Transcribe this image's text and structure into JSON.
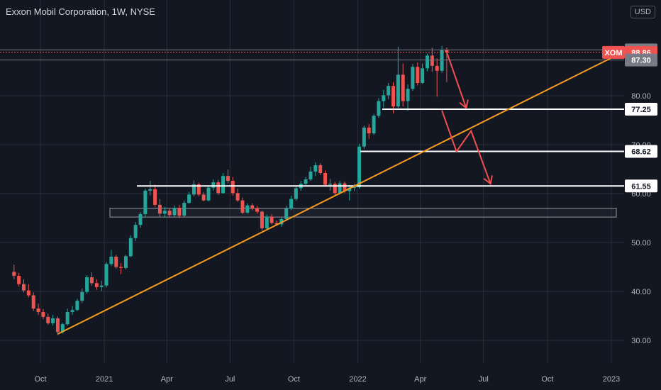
{
  "header": {
    "title": "Exxon Mobil Corporation, 1W, NYSE",
    "currency": "USD"
  },
  "colors": {
    "background": "#131722",
    "up": "#26a69a",
    "down": "#ef5350",
    "trendline": "#f59b1f",
    "level": "#ffffff",
    "arrow": "#f0504f",
    "grid": "#2a2e39",
    "axis_text": "#b2b5be"
  },
  "chart_data": {
    "type": "candlestick",
    "title": "Exxon Mobil Corporation, 1W, NYSE",
    "x_tick_labels": [
      "Oct",
      "2021",
      "Apr",
      "Jul",
      "Oct",
      "2022",
      "Apr",
      "Jul",
      "Oct",
      "2023"
    ],
    "y_tick_labels": [
      "30.00",
      "40.00",
      "50.00",
      "60.00",
      "70.00",
      "80.00"
    ],
    "ylim": [
      27,
      93
    ],
    "grid": true,
    "price_tags": [
      {
        "label": "89.36",
        "value": 89.36
      },
      {
        "symbol": "XOM",
        "label": "88.86",
        "value": 88.86
      },
      {
        "label": "87.30",
        "value": 87.3
      }
    ],
    "levels": [
      {
        "label": "77.25",
        "value": 77.25
      },
      {
        "label": "68.62",
        "value": 68.62
      },
      {
        "label": "61.55",
        "value": 61.55
      }
    ],
    "zone": {
      "low": 55.2,
      "high": 57.0
    },
    "trendline": [
      {
        "x": "2020-10-26",
        "y": 31.3
      },
      {
        "x": "2023-01-09",
        "y": 88.3
      }
    ],
    "ohlc": [
      [
        "2020-08-24",
        44.0,
        45.5,
        42.5,
        43.2
      ],
      [
        "2020-08-31",
        43.2,
        43.8,
        41.0,
        41.5
      ],
      [
        "2020-09-07",
        41.5,
        42.5,
        39.8,
        40.2
      ],
      [
        "2020-09-14",
        40.2,
        41.5,
        38.8,
        39.2
      ],
      [
        "2020-09-21",
        39.2,
        39.8,
        36.0,
        36.5
      ],
      [
        "2020-09-28",
        36.5,
        37.5,
        35.2,
        35.8
      ],
      [
        "2020-10-05",
        35.8,
        36.4,
        34.3,
        34.8
      ],
      [
        "2020-10-12",
        34.8,
        35.5,
        33.2,
        33.5
      ],
      [
        "2020-10-19",
        33.5,
        35.2,
        33.0,
        34.5
      ],
      [
        "2020-10-26",
        34.5,
        34.9,
        31.1,
        31.7
      ],
      [
        "2020-11-02",
        31.7,
        33.6,
        31.4,
        33.3
      ],
      [
        "2020-11-09",
        33.3,
        36.5,
        33.0,
        35.8
      ],
      [
        "2020-11-16",
        35.8,
        37.0,
        35.2,
        36.2
      ],
      [
        "2020-11-23",
        36.2,
        38.5,
        36.0,
        38.1
      ],
      [
        "2020-11-30",
        38.1,
        40.6,
        37.6,
        39.9
      ],
      [
        "2020-12-07",
        39.9,
        43.3,
        39.5,
        42.9
      ],
      [
        "2020-12-14",
        42.9,
        43.9,
        41.2,
        41.7
      ],
      [
        "2020-12-21",
        41.7,
        42.5,
        40.3,
        40.9
      ],
      [
        "2020-12-28",
        40.9,
        42.2,
        40.1,
        41.2
      ],
      [
        "2021-01-04",
        41.2,
        46.0,
        40.8,
        45.6
      ],
      [
        "2021-01-11",
        45.6,
        48.5,
        45.2,
        47.1
      ],
      [
        "2021-01-18",
        47.1,
        47.5,
        44.6,
        45.0
      ],
      [
        "2021-01-25",
        45.0,
        45.8,
        43.5,
        44.8
      ],
      [
        "2021-02-01",
        44.8,
        47.5,
        44.5,
        47.2
      ],
      [
        "2021-02-08",
        47.2,
        51.5,
        47.0,
        50.9
      ],
      [
        "2021-02-15",
        50.9,
        54.2,
        50.3,
        53.6
      ],
      [
        "2021-02-22",
        53.6,
        56.2,
        53.0,
        55.8
      ],
      [
        "2021-03-01",
        55.8,
        61.0,
        55.3,
        60.6
      ],
      [
        "2021-03-08",
        60.6,
        62.6,
        59.6,
        60.9
      ],
      [
        "2021-03-15",
        60.9,
        61.8,
        57.3,
        57.7
      ],
      [
        "2021-03-22",
        57.7,
        58.9,
        55.3,
        55.9
      ],
      [
        "2021-03-29",
        55.9,
        57.3,
        55.1,
        56.5
      ],
      [
        "2021-04-05",
        56.5,
        57.0,
        55.1,
        55.6
      ],
      [
        "2021-04-12",
        55.6,
        57.6,
        55.2,
        57.1
      ],
      [
        "2021-04-19",
        57.1,
        57.7,
        55.0,
        55.5
      ],
      [
        "2021-04-26",
        55.5,
        58.6,
        55.2,
        58.1
      ],
      [
        "2021-05-03",
        58.1,
        60.4,
        57.9,
        59.8
      ],
      [
        "2021-05-10",
        59.8,
        62.7,
        59.4,
        61.9
      ],
      [
        "2021-05-17",
        61.9,
        62.2,
        59.4,
        59.8
      ],
      [
        "2021-05-24",
        59.8,
        60.3,
        58.4,
        58.6
      ],
      [
        "2021-05-31",
        58.6,
        61.6,
        58.4,
        61.2
      ],
      [
        "2021-06-07",
        61.2,
        62.9,
        60.6,
        62.3
      ],
      [
        "2021-06-14",
        62.3,
        62.8,
        59.7,
        60.1
      ],
      [
        "2021-06-21",
        60.1,
        64.2,
        60.0,
        63.6
      ],
      [
        "2021-06-28",
        63.6,
        64.9,
        62.1,
        62.6
      ],
      [
        "2021-07-05",
        62.6,
        63.4,
        59.6,
        60.1
      ],
      [
        "2021-07-12",
        60.1,
        61.0,
        58.3,
        58.6
      ],
      [
        "2021-07-19",
        58.6,
        59.2,
        55.8,
        56.1
      ],
      [
        "2021-07-26",
        56.1,
        58.0,
        55.9,
        57.6
      ],
      [
        "2021-08-02",
        57.6,
        58.0,
        56.6,
        56.9
      ],
      [
        "2021-08-09",
        56.9,
        57.5,
        55.9,
        56.3
      ],
      [
        "2021-08-16",
        56.3,
        56.5,
        52.4,
        52.9
      ],
      [
        "2021-08-23",
        52.9,
        55.7,
        52.6,
        55.3
      ],
      [
        "2021-08-30",
        55.3,
        55.8,
        53.7,
        54.0
      ],
      [
        "2021-09-06",
        54.0,
        54.5,
        53.4,
        53.7
      ],
      [
        "2021-09-13",
        53.7,
        55.1,
        53.2,
        54.8
      ],
      [
        "2021-09-20",
        54.8,
        57.5,
        54.4,
        57.0
      ],
      [
        "2021-09-27",
        57.0,
        59.6,
        56.6,
        58.9
      ],
      [
        "2021-10-04",
        58.9,
        61.6,
        58.5,
        61.1
      ],
      [
        "2021-10-11",
        61.1,
        62.6,
        60.6,
        62.0
      ],
      [
        "2021-10-18",
        62.0,
        63.4,
        61.5,
        62.9
      ],
      [
        "2021-10-25",
        62.9,
        65.5,
        62.6,
        64.5
      ],
      [
        "2021-11-01",
        64.5,
        66.4,
        63.6,
        65.8
      ],
      [
        "2021-11-08",
        65.8,
        66.2,
        63.8,
        64.2
      ],
      [
        "2021-11-15",
        64.2,
        64.7,
        61.4,
        61.8
      ],
      [
        "2021-11-22",
        61.8,
        63.0,
        60.6,
        62.0
      ],
      [
        "2021-11-29",
        62.0,
        62.4,
        59.6,
        60.1
      ],
      [
        "2021-12-06",
        60.1,
        62.6,
        59.8,
        62.1
      ],
      [
        "2021-12-13",
        62.1,
        62.5,
        60.1,
        60.5
      ],
      [
        "2021-12-20",
        60.5,
        61.8,
        58.6,
        61.2
      ],
      [
        "2021-12-27",
        61.2,
        62.0,
        60.5,
        61.3
      ],
      [
        "2022-01-03",
        61.3,
        70.2,
        61.0,
        69.6
      ],
      [
        "2022-01-10",
        69.6,
        73.9,
        69.1,
        73.5
      ],
      [
        "2022-01-17",
        73.5,
        74.2,
        71.2,
        72.3
      ],
      [
        "2022-01-24",
        72.3,
        76.3,
        72.0,
        75.9
      ],
      [
        "2022-01-31",
        75.9,
        79.5,
        75.5,
        78.9
      ],
      [
        "2022-02-07",
        78.9,
        81.2,
        77.6,
        80.1
      ],
      [
        "2022-02-14",
        80.1,
        82.6,
        79.3,
        82.0
      ],
      [
        "2022-02-21",
        82.0,
        82.8,
        76.4,
        77.8
      ],
      [
        "2022-02-28",
        77.8,
        90.0,
        77.5,
        84.3
      ],
      [
        "2022-03-07",
        84.3,
        86.6,
        77.8,
        78.9
      ],
      [
        "2022-03-14",
        78.9,
        82.3,
        76.9,
        81.4
      ],
      [
        "2022-03-21",
        81.4,
        86.5,
        81.0,
        85.9
      ],
      [
        "2022-03-28",
        85.9,
        86.8,
        82.1,
        82.6
      ],
      [
        "2022-04-04",
        82.6,
        86.6,
        82.4,
        85.6
      ],
      [
        "2022-04-11",
        85.6,
        88.6,
        85.0,
        88.2
      ],
      [
        "2022-04-18",
        88.2,
        89.8,
        84.9,
        86.1
      ],
      [
        "2022-04-25",
        86.1,
        87.6,
        79.8,
        85.1
      ],
      [
        "2022-05-02",
        85.1,
        90.2,
        84.7,
        89.4
      ],
      [
        "2022-05-09",
        89.4,
        89.9,
        82.8,
        88.9
      ]
    ],
    "projection_arrows": [
      [
        [
          "2022-05-09",
          88.9
        ],
        [
          "2022-06-06",
          77.5
        ]
      ],
      [
        [
          "2022-05-02",
          77.0
        ],
        [
          "2022-05-23",
          68.6
        ],
        [
          "2022-06-13",
          72.8
        ],
        [
          "2022-07-11",
          62.0
        ]
      ]
    ]
  }
}
